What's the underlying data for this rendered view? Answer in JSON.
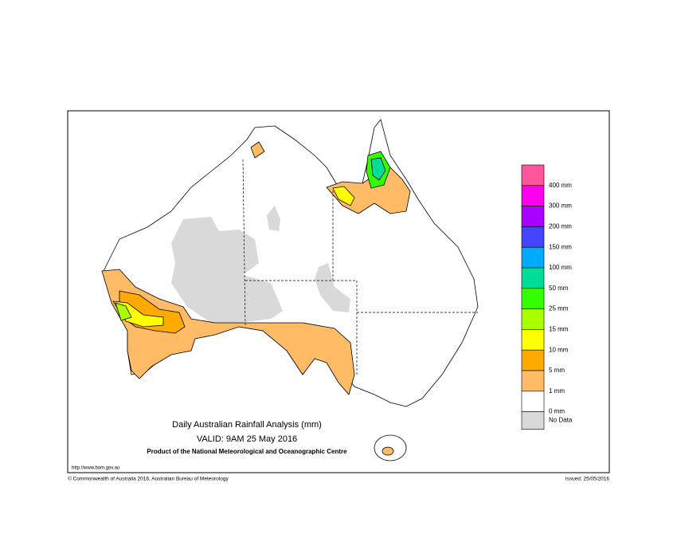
{
  "map": {
    "title": "Daily Australian Rainfall Analysis (mm)",
    "valid": "VALID: 9AM 25 May 2016",
    "product": "Product of the National Meteorological and Oceanographic Centre",
    "url": "http://www.bom.gov.au",
    "copyright": "© Commonwealth of Australia 2016, Australian Bureau of Meteorology",
    "issued": "Issued: 25/05/2016",
    "legend": [
      {
        "label": "400 mm",
        "color": "#ff5599"
      },
      {
        "label": "300 mm",
        "color": "#ff00ee"
      },
      {
        "label": "200 mm",
        "color": "#aa00ff"
      },
      {
        "label": "150 mm",
        "color": "#4444ff"
      },
      {
        "label": "100 mm",
        "color": "#00aaff"
      },
      {
        "label": "50 mm",
        "color": "#00dd99"
      },
      {
        "label": "25 mm",
        "color": "#33ff00"
      },
      {
        "label": "15 mm",
        "color": "#aaff00"
      },
      {
        "label": "10 mm",
        "color": "#ffff00"
      },
      {
        "label": "5 mm",
        "color": "#ffaa00"
      },
      {
        "label": "1 mm",
        "color": "#ffbb66"
      },
      {
        "label": "0 mm",
        "color": "#ffffff"
      },
      {
        "label": "No Data",
        "color": "#d9d9d9"
      }
    ]
  }
}
